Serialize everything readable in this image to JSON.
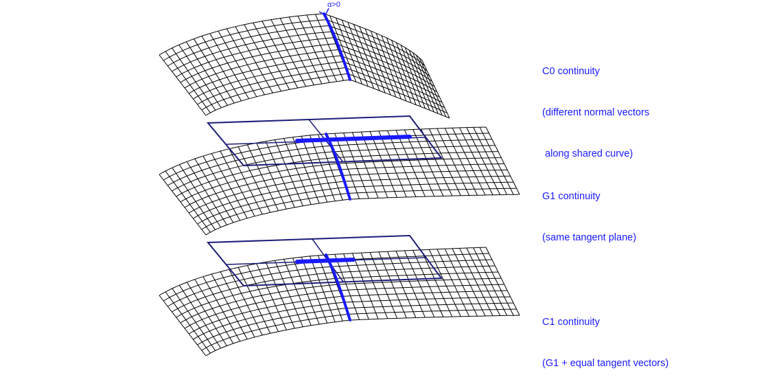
{
  "colors": {
    "mesh": "#000000",
    "curve": "#1a1aff",
    "plane": "#1c1c7a",
    "text": "#1a1aff"
  },
  "panels": [
    {
      "id": "c0",
      "mesh_label": "c0-surface-mesh",
      "has_tangent_plane": false,
      "has_angle_marker": true,
      "angle_label": "α>0",
      "caption": [
        "C0 continuity",
        "(different normal vectors",
        " along shared curve)"
      ]
    },
    {
      "id": "g1",
      "mesh_label": "g1-surface-mesh",
      "has_tangent_plane": true,
      "has_angle_marker": false,
      "caption": [
        "G1 continuity",
        "(same tangent plane)"
      ]
    },
    {
      "id": "c1",
      "mesh_label": "c1-surface-mesh",
      "has_tangent_plane": true,
      "has_angle_marker": false,
      "caption": [
        "C1 continuity",
        "(G1 + equal tangent vectors)"
      ]
    }
  ]
}
